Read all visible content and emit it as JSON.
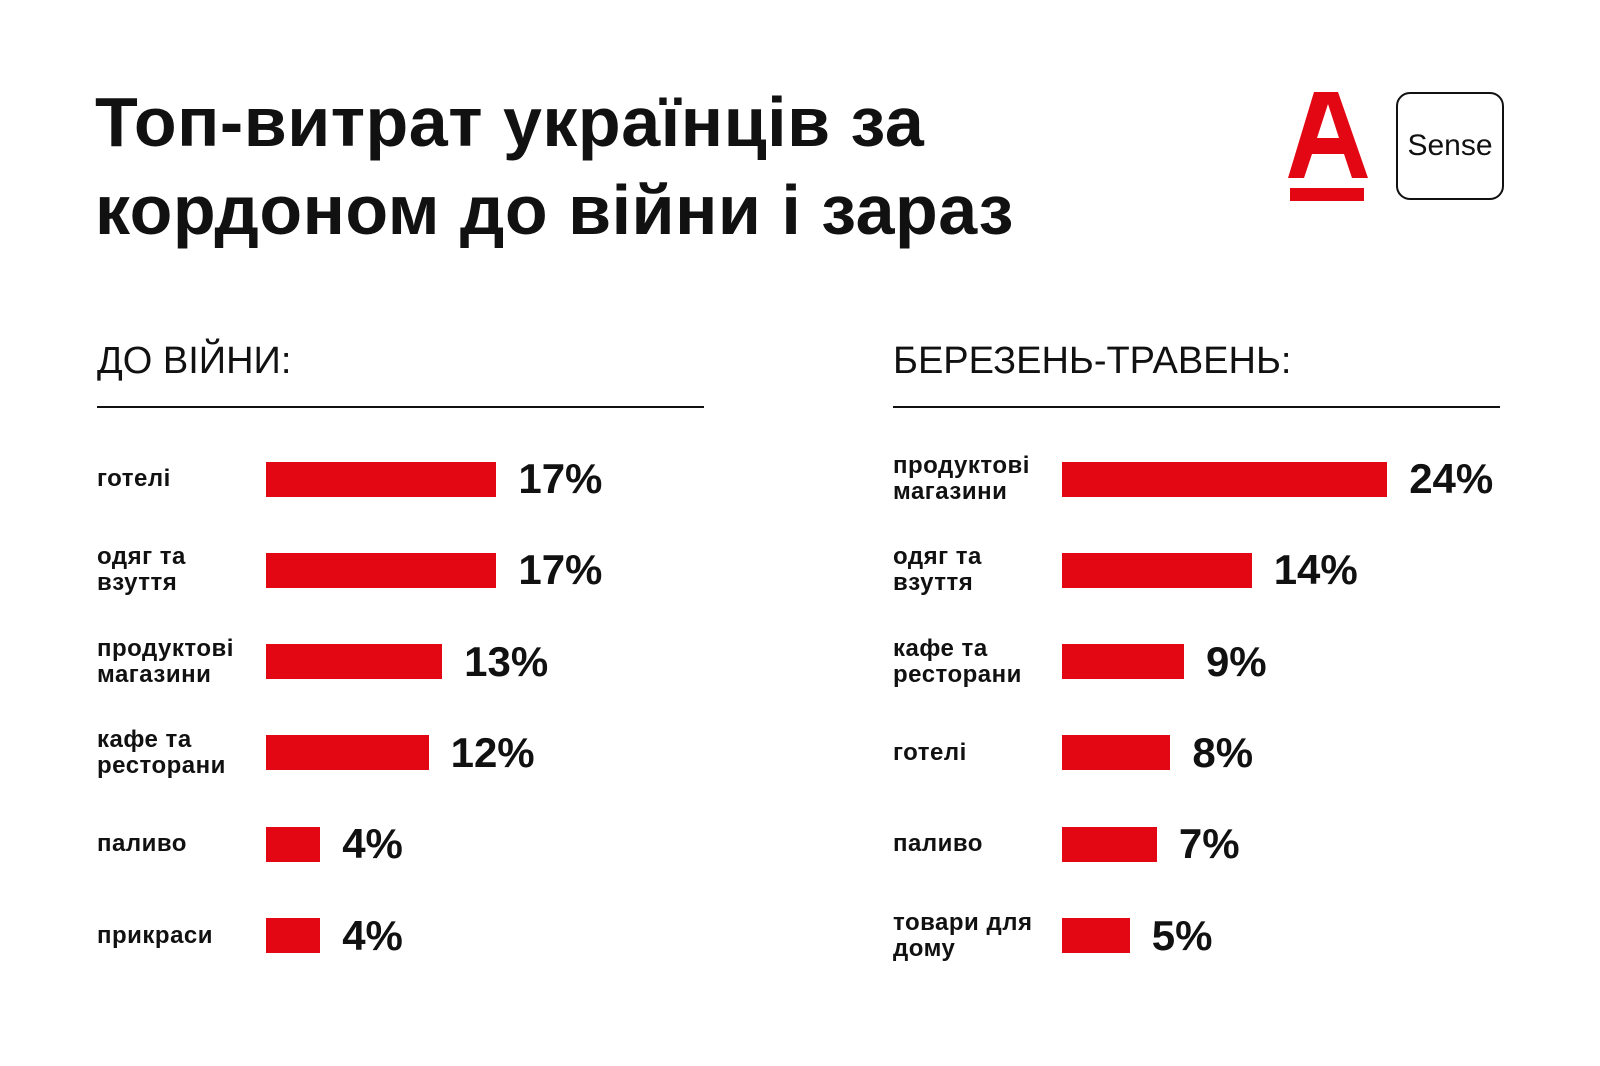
{
  "title": "Топ-витрат українців за кордоном до війни і зараз",
  "logo_text": "Sense",
  "chart_data": [
    {
      "type": "bar",
      "orientation": "horizontal",
      "title": "ДО ВІЙНИ:",
      "color": "#e30613",
      "categories": [
        "готелі",
        "одяг та взуття",
        "продуктові магазини",
        "кафе та ресторани",
        "паливо",
        "прикраси"
      ],
      "values": [
        17,
        17,
        13,
        12,
        4,
        4
      ],
      "value_labels": [
        "17%",
        "17%",
        "13%",
        "12%",
        "4%",
        "4%"
      ]
    },
    {
      "type": "bar",
      "orientation": "horizontal",
      "title": "БЕРЕЗЕНЬ-ТРАВЕНЬ:",
      "color": "#e30613",
      "categories": [
        "продуктові магазини",
        "одяг та взуття",
        "кафе та ресторани",
        "готелі",
        "паливо",
        "товари для дому"
      ],
      "values": [
        24,
        14,
        9,
        8,
        7,
        5
      ],
      "value_labels": [
        "24%",
        "14%",
        "9%",
        "8%",
        "7%",
        "5%"
      ]
    }
  ]
}
